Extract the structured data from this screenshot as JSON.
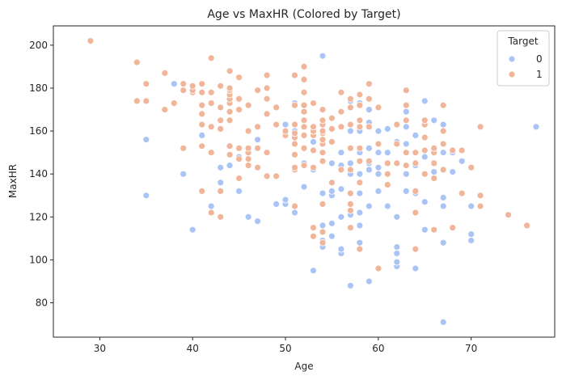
{
  "chart_data": {
    "type": "scatter",
    "title": "Age vs MaxHR (Colored by Target)",
    "xlabel": "Age",
    "ylabel": "MaxHR",
    "xlim": [
      25,
      79
    ],
    "ylim": [
      64,
      209
    ],
    "xticks": [
      30,
      40,
      50,
      60,
      70
    ],
    "yticks": [
      80,
      100,
      120,
      140,
      160,
      180,
      200
    ],
    "grid": false,
    "legend": {
      "title": "Target",
      "placement": "top-right"
    },
    "series": [
      {
        "name": "0",
        "color": "#a9c4f5",
        "points": [
          [
            35,
            156
          ],
          [
            35,
            130
          ],
          [
            38,
            182
          ],
          [
            39,
            140
          ],
          [
            40,
            114
          ],
          [
            40,
            181
          ],
          [
            41,
            158
          ],
          [
            41,
            168
          ],
          [
            42,
            125
          ],
          [
            42,
            122
          ],
          [
            43,
            120
          ],
          [
            43,
            136
          ],
          [
            43,
            143
          ],
          [
            44,
            144
          ],
          [
            44,
            153
          ],
          [
            44,
            175
          ],
          [
            44,
            178
          ],
          [
            45,
            132
          ],
          [
            45,
            148
          ],
          [
            46,
            120
          ],
          [
            46,
            150
          ],
          [
            47,
            118
          ],
          [
            47,
            156
          ],
          [
            48,
            150
          ],
          [
            48,
            168
          ],
          [
            49,
            126
          ],
          [
            49,
            139
          ],
          [
            49,
            171
          ],
          [
            50,
            126
          ],
          [
            50,
            128
          ],
          [
            50,
            158
          ],
          [
            50,
            163
          ],
          [
            51,
            122
          ],
          [
            51,
            125
          ],
          [
            51,
            160
          ],
          [
            51,
            173
          ],
          [
            52,
            134
          ],
          [
            52,
            145
          ],
          [
            52,
            162
          ],
          [
            52,
            169
          ],
          [
            53,
            95
          ],
          [
            53,
            115
          ],
          [
            53,
            142
          ],
          [
            53,
            155
          ],
          [
            53,
            173
          ],
          [
            54,
            106
          ],
          [
            54,
            109
          ],
          [
            54,
            116
          ],
          [
            54,
            126
          ],
          [
            54,
            131
          ],
          [
            54,
            150
          ],
          [
            54,
            163
          ],
          [
            54,
            195
          ],
          [
            55,
            111
          ],
          [
            55,
            117
          ],
          [
            55,
            130
          ],
          [
            55,
            132
          ],
          [
            55,
            145
          ],
          [
            55,
            155
          ],
          [
            56,
            103
          ],
          [
            56,
            105
          ],
          [
            56,
            120
          ],
          [
            56,
            133
          ],
          [
            56,
            144
          ],
          [
            56,
            150
          ],
          [
            57,
            88
          ],
          [
            57,
            121
          ],
          [
            57,
            140
          ],
          [
            57,
            145
          ],
          [
            57,
            160
          ],
          [
            57,
            163
          ],
          [
            57,
            174
          ],
          [
            58,
            108
          ],
          [
            58,
            116
          ],
          [
            58,
            122
          ],
          [
            58,
            131
          ],
          [
            58,
            140
          ],
          [
            58,
            150
          ],
          [
            58,
            160
          ],
          [
            58,
            173
          ],
          [
            59,
            90
          ],
          [
            59,
            125
          ],
          [
            59,
            142
          ],
          [
            59,
            145
          ],
          [
            59,
            152
          ],
          [
            59,
            164
          ],
          [
            59,
            170
          ],
          [
            60,
            132
          ],
          [
            60,
            140
          ],
          [
            60,
            143
          ],
          [
            60,
            150
          ],
          [
            60,
            160
          ],
          [
            60,
            171
          ],
          [
            61,
            125
          ],
          [
            61,
            145
          ],
          [
            61,
            150
          ],
          [
            61,
            161
          ],
          [
            62,
            97
          ],
          [
            62,
            99
          ],
          [
            62,
            103
          ],
          [
            62,
            106
          ],
          [
            62,
            120
          ],
          [
            62,
            145
          ],
          [
            62,
            155
          ],
          [
            63,
            132
          ],
          [
            63,
            140
          ],
          [
            63,
            154
          ],
          [
            63,
            162
          ],
          [
            63,
            169
          ],
          [
            64,
            96
          ],
          [
            64,
            131
          ],
          [
            64,
            144
          ],
          [
            64,
            158
          ],
          [
            65,
            114
          ],
          [
            65,
            127
          ],
          [
            65,
            140
          ],
          [
            65,
            148
          ],
          [
            65,
            174
          ],
          [
            66,
            114
          ],
          [
            66,
            141
          ],
          [
            66,
            151
          ],
          [
            66,
            165
          ],
          [
            67,
            71
          ],
          [
            67,
            108
          ],
          [
            67,
            125
          ],
          [
            67,
            129
          ],
          [
            67,
            150
          ],
          [
            67,
            163
          ],
          [
            68,
            141
          ],
          [
            68,
            150
          ],
          [
            69,
            146
          ],
          [
            70,
            109
          ],
          [
            70,
            112
          ],
          [
            70,
            125
          ],
          [
            71,
            125
          ],
          [
            77,
            162
          ]
        ]
      },
      {
        "name": "1",
        "color": "#f1b69a",
        "points": [
          [
            29,
            202
          ],
          [
            34,
            174
          ],
          [
            34,
            192
          ],
          [
            35,
            174
          ],
          [
            35,
            182
          ],
          [
            37,
            170
          ],
          [
            37,
            187
          ],
          [
            38,
            173
          ],
          [
            39,
            152
          ],
          [
            39,
            179
          ],
          [
            39,
            182
          ],
          [
            40,
            178
          ],
          [
            40,
            179
          ],
          [
            40,
            181
          ],
          [
            41,
            132
          ],
          [
            41,
            153
          ],
          [
            41,
            163
          ],
          [
            41,
            168
          ],
          [
            41,
            172
          ],
          [
            41,
            178
          ],
          [
            41,
            182
          ],
          [
            42,
            122
          ],
          [
            42,
            150
          ],
          [
            42,
            162
          ],
          [
            42,
            173
          ],
          [
            42,
            178
          ],
          [
            42,
            194
          ],
          [
            43,
            120
          ],
          [
            43,
            132
          ],
          [
            43,
            161
          ],
          [
            43,
            165
          ],
          [
            43,
            171
          ],
          [
            43,
            181
          ],
          [
            44,
            149
          ],
          [
            44,
            153
          ],
          [
            44,
            165
          ],
          [
            44,
            169
          ],
          [
            44,
            173
          ],
          [
            44,
            175
          ],
          [
            44,
            177
          ],
          [
            44,
            179
          ],
          [
            44,
            180
          ],
          [
            44,
            188
          ],
          [
            45,
            138
          ],
          [
            45,
            147
          ],
          [
            45,
            152
          ],
          [
            45,
            170
          ],
          [
            45,
            175
          ],
          [
            45,
            185
          ],
          [
            46,
            144
          ],
          [
            46,
            147
          ],
          [
            46,
            150
          ],
          [
            46,
            152
          ],
          [
            46,
            160
          ],
          [
            46,
            172
          ],
          [
            47,
            143
          ],
          [
            47,
            152
          ],
          [
            47,
            162
          ],
          [
            47,
            179
          ],
          [
            48,
            139
          ],
          [
            48,
            150
          ],
          [
            48,
            168
          ],
          [
            48,
            175
          ],
          [
            48,
            180
          ],
          [
            48,
            186
          ],
          [
            49,
            139
          ],
          [
            49,
            163
          ],
          [
            49,
            171
          ],
          [
            50,
            158
          ],
          [
            50,
            160
          ],
          [
            51,
            125
          ],
          [
            51,
            142
          ],
          [
            51,
            143
          ],
          [
            51,
            149
          ],
          [
            51,
            154
          ],
          [
            51,
            157
          ],
          [
            51,
            159
          ],
          [
            51,
            163
          ],
          [
            51,
            172
          ],
          [
            51,
            186
          ],
          [
            52,
            144
          ],
          [
            52,
            152
          ],
          [
            52,
            158
          ],
          [
            52,
            162
          ],
          [
            52,
            165
          ],
          [
            52,
            169
          ],
          [
            52,
            172
          ],
          [
            52,
            178
          ],
          [
            52,
            184
          ],
          [
            52,
            190
          ],
          [
            53,
            111
          ],
          [
            53,
            115
          ],
          [
            53,
            143
          ],
          [
            53,
            151
          ],
          [
            53,
            158
          ],
          [
            53,
            160
          ],
          [
            53,
            162
          ],
          [
            53,
            173
          ],
          [
            54,
            108
          ],
          [
            54,
            113
          ],
          [
            54,
            126
          ],
          [
            54,
            146
          ],
          [
            54,
            150
          ],
          [
            54,
            154
          ],
          [
            54,
            156
          ],
          [
            54,
            159
          ],
          [
            54,
            160
          ],
          [
            54,
            163
          ],
          [
            54,
            165
          ],
          [
            54,
            170
          ],
          [
            55,
            136
          ],
          [
            55,
            155
          ],
          [
            55,
            161
          ],
          [
            55,
            166
          ],
          [
            56,
            142
          ],
          [
            56,
            162
          ],
          [
            56,
            169
          ],
          [
            56,
            178
          ],
          [
            57,
            115
          ],
          [
            57,
            123
          ],
          [
            57,
            126
          ],
          [
            57,
            131
          ],
          [
            57,
            142
          ],
          [
            57,
            152
          ],
          [
            57,
            163
          ],
          [
            57,
            171
          ],
          [
            57,
            175
          ],
          [
            58,
            105
          ],
          [
            58,
            136
          ],
          [
            58,
            146
          ],
          [
            58,
            152
          ],
          [
            58,
            162
          ],
          [
            58,
            165
          ],
          [
            58,
            172
          ],
          [
            58,
            177
          ],
          [
            59,
            146
          ],
          [
            59,
            162
          ],
          [
            59,
            175
          ],
          [
            59,
            182
          ],
          [
            60,
            96
          ],
          [
            60,
            154
          ],
          [
            60,
            171
          ],
          [
            61,
            135
          ],
          [
            61,
            140
          ],
          [
            61,
            145
          ],
          [
            62,
            145
          ],
          [
            62,
            154
          ],
          [
            62,
            163
          ],
          [
            63,
            144
          ],
          [
            63,
            150
          ],
          [
            63,
            165
          ],
          [
            63,
            172
          ],
          [
            63,
            179
          ],
          [
            64,
            105
          ],
          [
            64,
            122
          ],
          [
            64,
            132
          ],
          [
            64,
            145
          ],
          [
            64,
            150
          ],
          [
            65,
            140
          ],
          [
            65,
            151
          ],
          [
            65,
            157
          ],
          [
            65,
            163
          ],
          [
            65,
            165
          ],
          [
            66,
            114
          ],
          [
            66,
            138
          ],
          [
            66,
            145
          ],
          [
            66,
            150
          ],
          [
            66,
            152
          ],
          [
            67,
            142
          ],
          [
            67,
            154
          ],
          [
            67,
            160
          ],
          [
            67,
            172
          ],
          [
            68,
            115
          ],
          [
            68,
            151
          ],
          [
            69,
            131
          ],
          [
            69,
            151
          ],
          [
            70,
            143
          ],
          [
            71,
            125
          ],
          [
            71,
            130
          ],
          [
            71,
            162
          ],
          [
            74,
            121
          ],
          [
            76,
            116
          ]
        ]
      }
    ]
  }
}
